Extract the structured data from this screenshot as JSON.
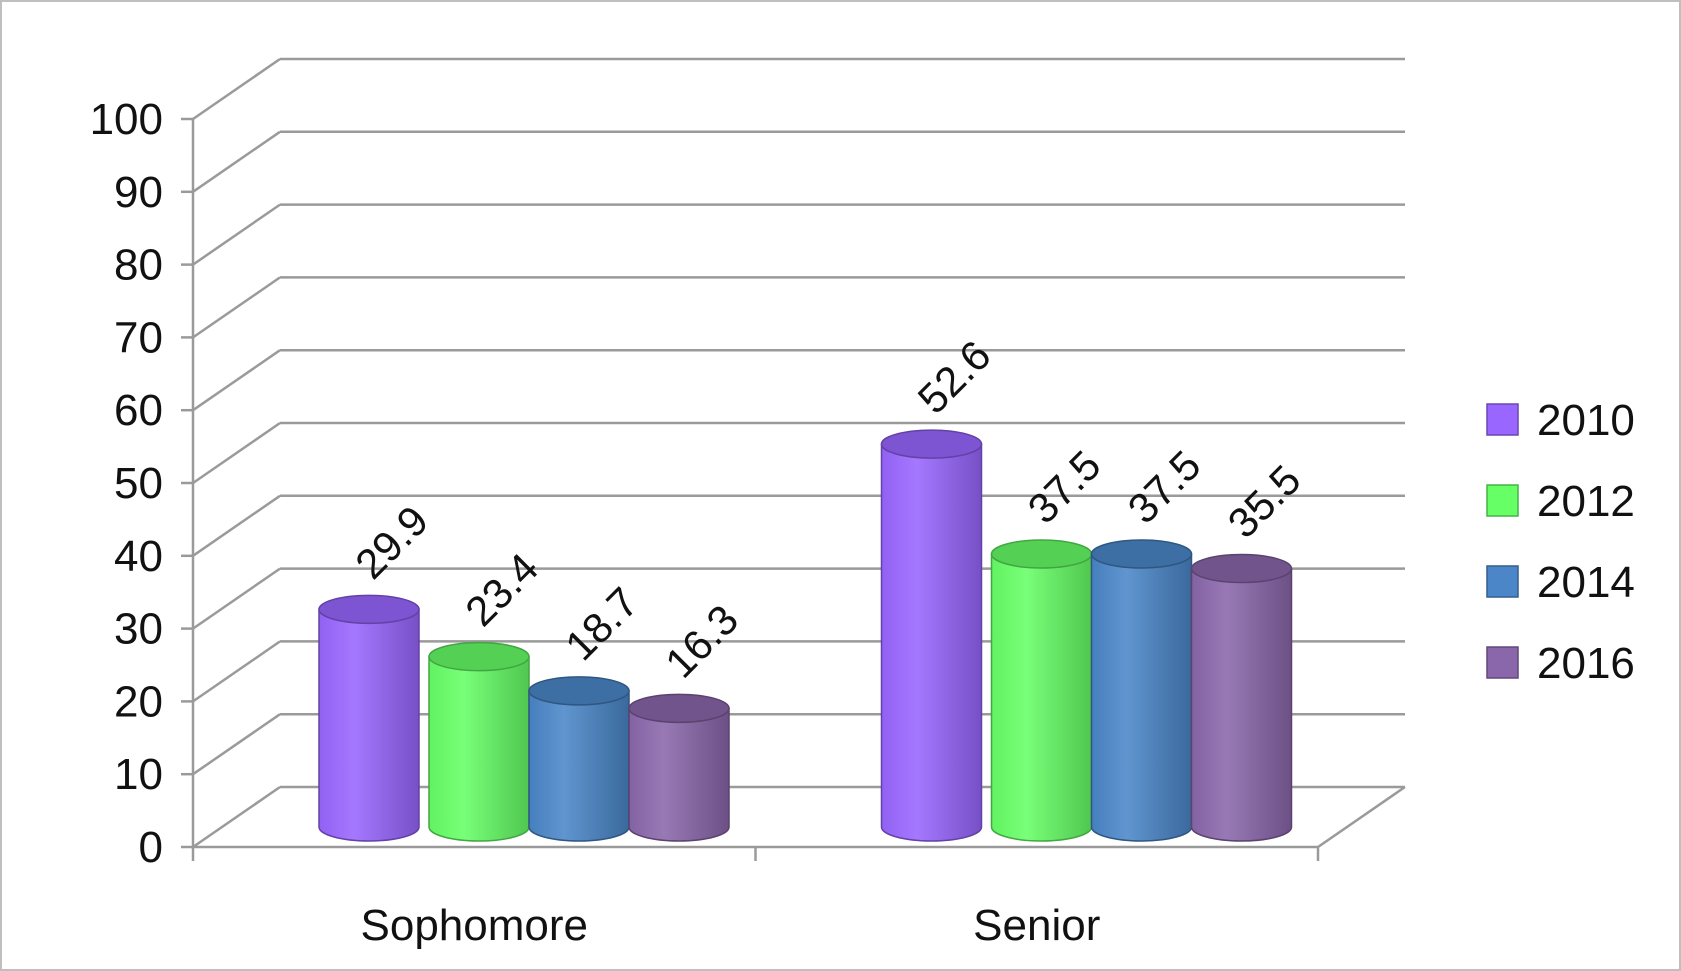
{
  "chart_data": {
    "type": "bar",
    "categories": [
      "Sophomore",
      "Senior"
    ],
    "series": [
      {
        "name": "2010",
        "color": "#9966ff",
        "values": [
          29.9,
          52.6
        ]
      },
      {
        "name": "2012",
        "color": "#66ff66",
        "values": [
          23.4,
          37.5
        ]
      },
      {
        "name": "2014",
        "color": "#4a86c8",
        "values": [
          18.7,
          37.5
        ]
      },
      {
        "name": "2016",
        "color": "#8a67ab",
        "values": [
          16.3,
          35.5
        ]
      }
    ],
    "ylim": [
      0,
      100
    ],
    "yticks": [
      0,
      10,
      20,
      30,
      40,
      50,
      60,
      70,
      80,
      90,
      100
    ],
    "grid": true,
    "legend": "right",
    "title": "",
    "xlabel": "",
    "ylabel": ""
  }
}
